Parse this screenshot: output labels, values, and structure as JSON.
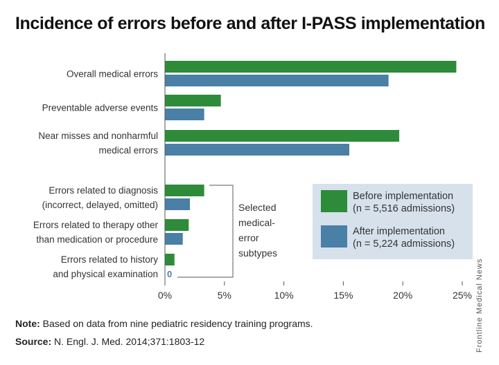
{
  "title": "Incidence of errors before and after I-PASS implementation",
  "chart_data": {
    "type": "bar",
    "orientation": "horizontal",
    "title": "Incidence of errors before and after I-PASS implementation",
    "categories": [
      [
        "Overall medical errors"
      ],
      [
        "Preventable adverse events"
      ],
      [
        "Near misses and nonharmful",
        "medical errors"
      ],
      [
        "Errors related to diagnosis",
        "(incorrect, delayed, omitted)"
      ],
      [
        "Errors related to therapy other",
        "than medication or procedure"
      ],
      [
        "Errors related to history",
        "and physical examination"
      ]
    ],
    "series": [
      {
        "name": "Before implementation",
        "values": [
          24.5,
          4.7,
          19.7,
          3.3,
          2.0,
          0.8
        ],
        "color": "#2e8b3a"
      },
      {
        "name": "After implementation",
        "values": [
          18.8,
          3.3,
          15.5,
          2.1,
          1.5,
          0.0
        ],
        "color": "#4a7fa6"
      }
    ],
    "zero_label": "0",
    "xlim": [
      0,
      25
    ],
    "xticks": [
      0,
      5,
      10,
      15,
      20,
      25
    ],
    "tick_suffix": "%",
    "grid": false,
    "legend": {
      "placement": "lower-right",
      "entries": [
        {
          "label": "Before implementation",
          "sub": "(n = 5,516 admissions)",
          "color": "#2e8b3a"
        },
        {
          "label": "After implementation",
          "sub": "(n = 5,224 admissions)",
          "color": "#4a7fa6"
        }
      ]
    },
    "bracket_label": [
      "Selected",
      "medical-",
      "error",
      "subtypes"
    ]
  },
  "footer": {
    "note_label": "Note:",
    "note_text": " Based on data from nine pediatric residency training programs.",
    "source_label": "Source:",
    "source_text": " N. Engl. J. Med. 2014;371:1803-12"
  },
  "credit": "Frontline Medical News"
}
